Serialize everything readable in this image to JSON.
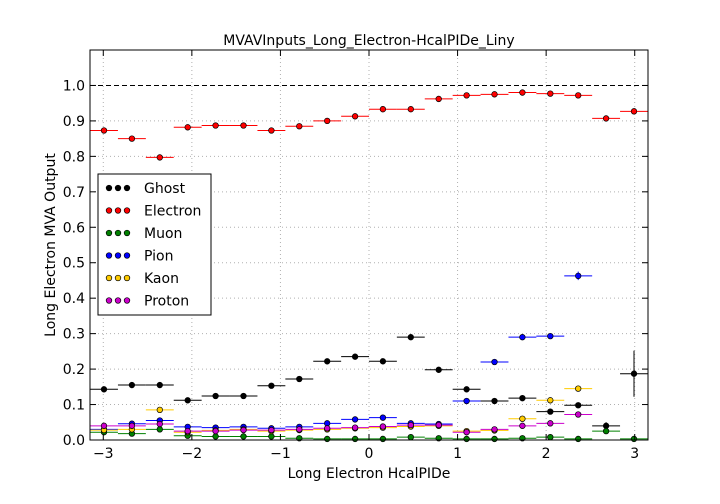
{
  "chart_data": {
    "type": "scatter",
    "title": "MVAVInputs_Long_Electron-HcalPIDe_Liny",
    "xlabel": "Long Electron HcalPIDe",
    "ylabel": "Long Electron MVA Output",
    "xlim": [
      -3.15,
      3.15
    ],
    "ylim": [
      0.0,
      1.1
    ],
    "xticks": [
      -3,
      -2,
      -1,
      0,
      1,
      2,
      3
    ],
    "xtick_labels": [
      "−3",
      "−2",
      "−1",
      "0",
      "1",
      "2",
      "3"
    ],
    "yticks": [
      0.0,
      0.1,
      0.2,
      0.3,
      0.4,
      0.5,
      0.6,
      0.7,
      0.8,
      0.9,
      1.0
    ],
    "ytick_labels": [
      "0.0",
      "0.1",
      "0.2",
      "0.3",
      "0.4",
      "0.5",
      "0.6",
      "0.7",
      "0.8",
      "0.9",
      "1.0"
    ],
    "grid": true,
    "reference_line_y": 1.0,
    "legend_position": "center-left",
    "x_bin_half_width": 0.1575,
    "series": [
      {
        "name": "Ghost",
        "color": "#000000",
        "x": [
          -2.992,
          -2.677,
          -2.362,
          -2.047,
          -1.732,
          -1.417,
          -1.102,
          -0.787,
          -0.472,
          -0.157,
          0.157,
          0.472,
          0.787,
          1.102,
          1.417,
          1.732,
          2.047,
          2.362,
          2.677,
          2.992
        ],
        "y": [
          0.143,
          0.155,
          0.155,
          0.112,
          0.124,
          0.124,
          0.153,
          0.172,
          0.222,
          0.235,
          0.222,
          0.29,
          0.198,
          0.143,
          0.11,
          0.118,
          0.08,
          0.098,
          0.04,
          0.187
        ],
        "err": [
          0.004,
          0.004,
          0.004,
          0.003,
          0.003,
          0.003,
          0.004,
          0.004,
          0.005,
          0.005,
          0.005,
          0.006,
          0.005,
          0.006,
          0.005,
          0.006,
          0.006,
          0.008,
          0.01,
          0.065
        ]
      },
      {
        "name": "Electron",
        "color": "#ff0000",
        "x": [
          -2.992,
          -2.677,
          -2.362,
          -2.047,
          -1.732,
          -1.417,
          -1.102,
          -0.787,
          -0.472,
          -0.157,
          0.157,
          0.472,
          0.787,
          1.102,
          1.417,
          1.732,
          2.047,
          2.362,
          2.677,
          2.992
        ],
        "y": [
          0.873,
          0.85,
          0.797,
          0.882,
          0.887,
          0.887,
          0.873,
          0.885,
          0.9,
          0.913,
          0.933,
          0.933,
          0.962,
          0.972,
          0.975,
          0.98,
          0.977,
          0.972,
          0.907,
          0.927
        ],
        "err": [
          0.003,
          0.003,
          0.004,
          0.003,
          0.003,
          0.003,
          0.003,
          0.003,
          0.003,
          0.003,
          0.002,
          0.002,
          0.002,
          0.002,
          0.002,
          0.002,
          0.002,
          0.003,
          0.004,
          0.006
        ]
      },
      {
        "name": "Muon",
        "color": "#008000",
        "x": [
          -2.992,
          -2.677,
          -2.362,
          -2.047,
          -1.732,
          -1.417,
          -1.102,
          -0.787,
          -0.472,
          -0.157,
          0.157,
          0.472,
          0.787,
          1.102,
          1.417,
          1.732,
          2.047,
          2.362,
          2.677,
          2.992
        ],
        "y": [
          0.022,
          0.018,
          0.03,
          0.012,
          0.01,
          0.01,
          0.01,
          0.005,
          0.003,
          0.003,
          0.003,
          0.008,
          0.005,
          0.003,
          0.003,
          0.005,
          0.008,
          0.003,
          0.025,
          0.003
        ],
        "err": [
          0.002,
          0.002,
          0.002,
          0.002,
          0.002,
          0.002,
          0.002,
          0.001,
          0.001,
          0.001,
          0.001,
          0.002,
          0.001,
          0.001,
          0.001,
          0.001,
          0.002,
          0.001,
          0.004,
          0.002
        ]
      },
      {
        "name": "Pion",
        "color": "#0000ff",
        "x": [
          -2.992,
          -2.677,
          -2.362,
          -2.047,
          -1.732,
          -1.417,
          -1.102,
          -0.787,
          -0.472,
          -0.157,
          0.157,
          0.472,
          0.787,
          1.102,
          1.417,
          1.732,
          2.047,
          2.362
        ],
        "y": [
          0.03,
          0.046,
          0.055,
          0.037,
          0.035,
          0.037,
          0.033,
          0.037,
          0.047,
          0.058,
          0.063,
          0.047,
          0.045,
          0.11,
          0.22,
          0.29,
          0.293,
          0.463
        ],
        "err": [
          0.002,
          0.002,
          0.002,
          0.002,
          0.002,
          0.002,
          0.002,
          0.002,
          0.002,
          0.003,
          0.003,
          0.003,
          0.003,
          0.005,
          0.006,
          0.006,
          0.007,
          0.012
        ]
      },
      {
        "name": "Kaon",
        "color": "#ffcc00",
        "x": [
          -2.992,
          -2.677,
          -2.362,
          -2.047,
          -1.732,
          -1.417,
          -1.102,
          -0.787,
          -0.472,
          -0.157,
          0.157,
          0.472,
          0.787,
          1.102,
          1.417,
          1.732,
          2.047,
          2.362
        ],
        "y": [
          0.028,
          0.03,
          0.085,
          0.022,
          0.027,
          0.03,
          0.025,
          0.028,
          0.03,
          0.033,
          0.035,
          0.038,
          0.04,
          0.025,
          0.027,
          0.06,
          0.112,
          0.145
        ],
        "err": [
          0.002,
          0.002,
          0.003,
          0.002,
          0.002,
          0.002,
          0.002,
          0.002,
          0.002,
          0.002,
          0.002,
          0.002,
          0.002,
          0.002,
          0.002,
          0.003,
          0.004,
          0.005
        ]
      },
      {
        "name": "Proton",
        "color": "#cc00cc",
        "x": [
          -2.992,
          -2.677,
          -2.362,
          -2.047,
          -1.732,
          -1.417,
          -1.102,
          -0.787,
          -0.472,
          -0.157,
          0.157,
          0.472,
          0.787,
          1.102,
          1.417,
          1.732,
          2.047,
          2.362
        ],
        "y": [
          0.04,
          0.04,
          0.045,
          0.025,
          0.025,
          0.028,
          0.028,
          0.03,
          0.033,
          0.035,
          0.038,
          0.042,
          0.042,
          0.022,
          0.03,
          0.04,
          0.047,
          0.072
        ],
        "err": [
          0.002,
          0.002,
          0.002,
          0.002,
          0.002,
          0.002,
          0.002,
          0.002,
          0.002,
          0.002,
          0.002,
          0.002,
          0.002,
          0.002,
          0.002,
          0.003,
          0.003,
          0.004
        ]
      }
    ]
  }
}
